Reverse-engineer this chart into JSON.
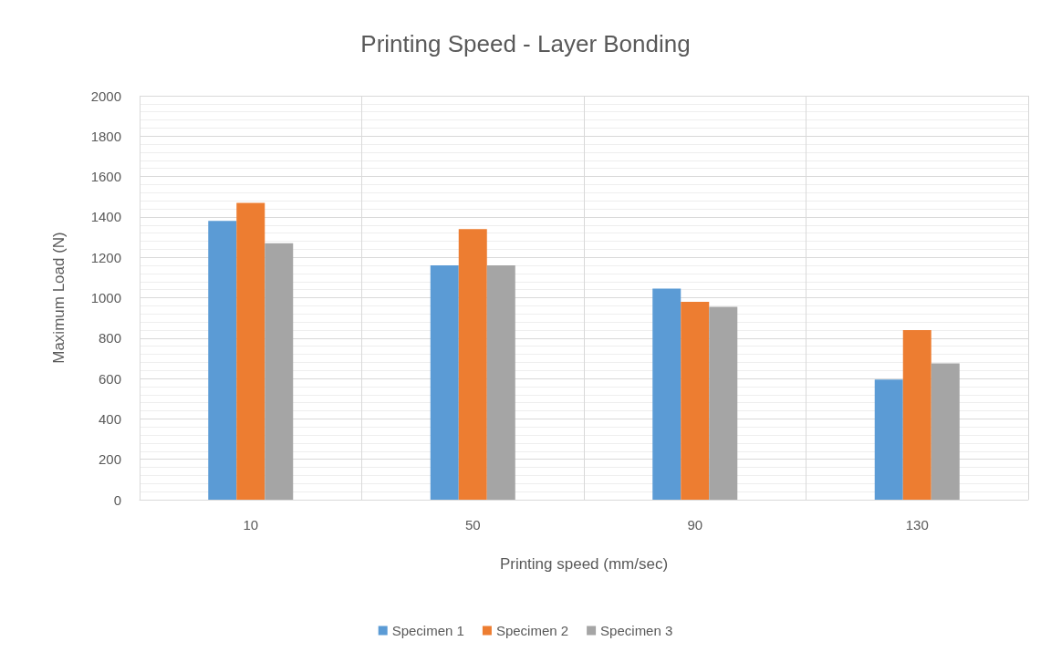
{
  "chart_data": {
    "type": "bar",
    "title": "Printing Speed - Layer Bonding",
    "xlabel": "Printing speed (mm/sec)",
    "ylabel": "Maximum Load (N)",
    "categories": [
      "10",
      "50",
      "90",
      "130"
    ],
    "series": [
      {
        "name": "Specimen 1",
        "color": "#5b9bd5",
        "values": [
          1380,
          1160,
          1045,
          595
        ]
      },
      {
        "name": "Specimen 2",
        "color": "#ed7d31",
        "values": [
          1470,
          1340,
          980,
          840
        ]
      },
      {
        "name": "Specimen 3",
        "color": "#a5a5a5",
        "values": [
          1270,
          1160,
          955,
          675
        ]
      }
    ],
    "ylim": [
      0,
      2000
    ],
    "yticks": [
      0,
      200,
      400,
      600,
      800,
      1000,
      1200,
      1400,
      1600,
      1800,
      2000
    ],
    "grid": true,
    "legend": "bottom"
  }
}
